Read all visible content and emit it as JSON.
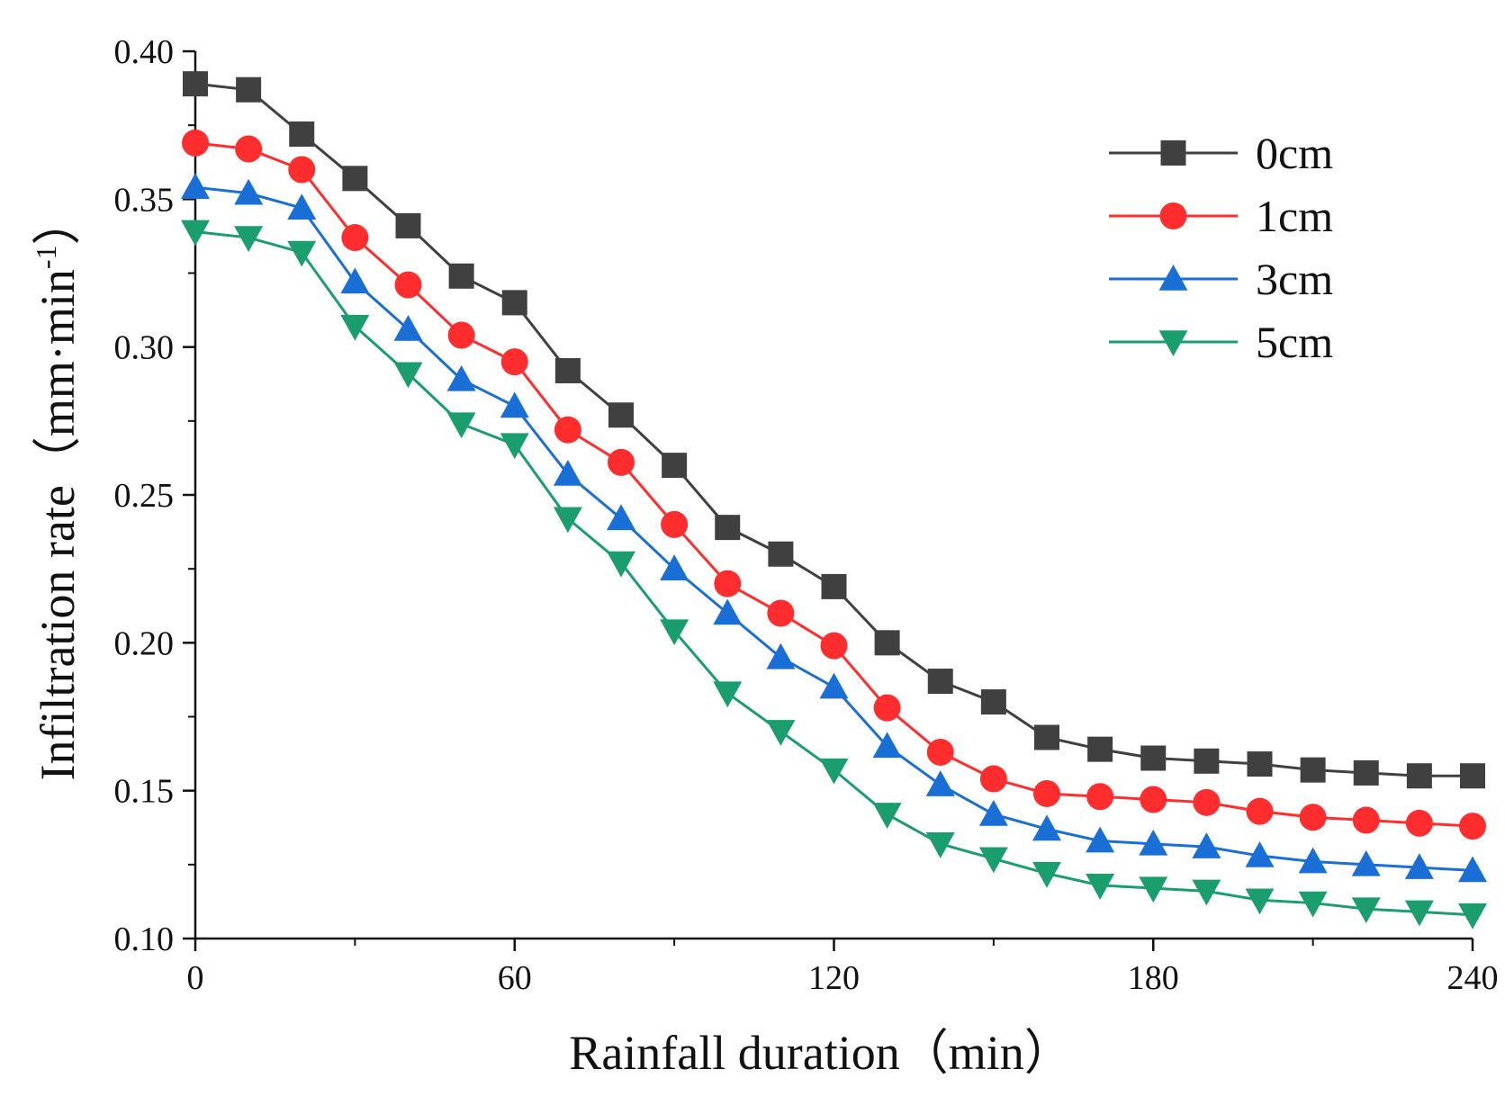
{
  "chart_data": {
    "type": "line",
    "title": "",
    "xlabel": "Rainfall duration（min）",
    "ylabel_main": "Infiltration rate（mm·min",
    "ylabel_sup": "-1",
    "ylabel_close": "）",
    "xlim": [
      0,
      240
    ],
    "ylim": [
      0.1,
      0.4
    ],
    "xticks": [
      0,
      60,
      120,
      180,
      240
    ],
    "yticks": [
      0.1,
      0.15,
      0.2,
      0.25,
      0.3,
      0.35,
      0.4
    ],
    "ytick_labels": [
      "0.10",
      "0.15",
      "0.20",
      "0.25",
      "0.30",
      "0.35",
      "0.40"
    ],
    "grid": false,
    "legend_position": "top-right",
    "x": [
      0,
      10,
      20,
      30,
      40,
      50,
      60,
      70,
      80,
      90,
      100,
      110,
      120,
      130,
      140,
      150,
      160,
      170,
      180,
      190,
      200,
      210,
      220,
      230,
      240
    ],
    "series": [
      {
        "name": "0cm",
        "color": "#404040",
        "marker": "square",
        "values": [
          0.389,
          0.387,
          0.372,
          0.357,
          0.341,
          0.324,
          0.315,
          0.292,
          0.277,
          0.26,
          0.239,
          0.23,
          0.219,
          0.2,
          0.187,
          0.18,
          0.168,
          0.164,
          0.161,
          0.16,
          0.159,
          0.157,
          0.156,
          0.155,
          0.155
        ]
      },
      {
        "name": "1cm",
        "color": "#ff2d2d",
        "marker": "circle",
        "values": [
          0.369,
          0.367,
          0.36,
          0.337,
          0.321,
          0.304,
          0.295,
          0.272,
          0.261,
          0.24,
          0.22,
          0.21,
          0.199,
          0.178,
          0.163,
          0.154,
          0.149,
          0.148,
          0.147,
          0.146,
          0.143,
          0.141,
          0.14,
          0.139,
          0.138
        ]
      },
      {
        "name": "3cm",
        "color": "#1a6fd6",
        "marker": "triangle-up",
        "values": [
          0.354,
          0.352,
          0.347,
          0.322,
          0.306,
          0.289,
          0.28,
          0.257,
          0.242,
          0.225,
          0.21,
          0.195,
          0.185,
          0.165,
          0.152,
          0.142,
          0.137,
          0.133,
          0.132,
          0.131,
          0.128,
          0.126,
          0.125,
          0.124,
          0.123
        ]
      },
      {
        "name": "5cm",
        "color": "#1a9e6e",
        "marker": "triangle-down",
        "values": [
          0.339,
          0.337,
          0.332,
          0.307,
          0.291,
          0.274,
          0.267,
          0.242,
          0.227,
          0.204,
          0.183,
          0.17,
          0.157,
          0.142,
          0.132,
          0.127,
          0.122,
          0.118,
          0.117,
          0.116,
          0.113,
          0.112,
          0.11,
          0.109,
          0.108
        ]
      }
    ]
  }
}
